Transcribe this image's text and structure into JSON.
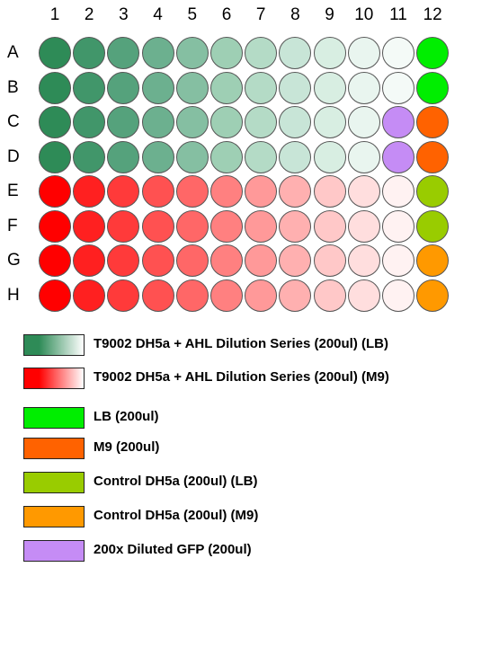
{
  "plate": {
    "columns": [
      "1",
      "2",
      "3",
      "4",
      "5",
      "6",
      "7",
      "8",
      "9",
      "10",
      "11",
      "12"
    ],
    "rows": [
      "A",
      "B",
      "C",
      "D",
      "E",
      "F",
      "G",
      "H"
    ],
    "colors": {
      "A": [
        "#2e8b57",
        "#41966a",
        "#55a27c",
        "#6cb08f",
        "#85bfa2",
        "#9ecfb4",
        "#b4dbc6",
        "#c8e5d7",
        "#d8eee2",
        "#e9f5ef",
        "#f4faf7",
        "#00ee00"
      ],
      "B": [
        "#2e8b57",
        "#41966a",
        "#55a27c",
        "#6cb08f",
        "#85bfa2",
        "#9ecfb4",
        "#b4dbc6",
        "#c8e5d7",
        "#d8eee2",
        "#e9f5ef",
        "#f4faf7",
        "#00ee00"
      ],
      "C": [
        "#2e8b57",
        "#41966a",
        "#55a27c",
        "#6cb08f",
        "#85bfa2",
        "#9ecfb4",
        "#b4dbc6",
        "#c8e5d7",
        "#d8eee2",
        "#e9f5ef",
        "#c58cf5",
        "#ff6200"
      ],
      "D": [
        "#2e8b57",
        "#41966a",
        "#55a27c",
        "#6cb08f",
        "#85bfa2",
        "#9ecfb4",
        "#b4dbc6",
        "#c8e5d7",
        "#d8eee2",
        "#e9f5ef",
        "#c58cf5",
        "#ff6200"
      ],
      "E": [
        "#ff0000",
        "#ff2020",
        "#ff3a3a",
        "#ff5151",
        "#ff6767",
        "#ff8080",
        "#ff9999",
        "#ffb0b0",
        "#ffc8c8",
        "#ffdede",
        "#fff2f2",
        "#99cc00"
      ],
      "F": [
        "#ff0000",
        "#ff2020",
        "#ff3a3a",
        "#ff5151",
        "#ff6767",
        "#ff8080",
        "#ff9999",
        "#ffb0b0",
        "#ffc8c8",
        "#ffdede",
        "#fff2f2",
        "#99cc00"
      ],
      "G": [
        "#ff0000",
        "#ff2020",
        "#ff3a3a",
        "#ff5151",
        "#ff6767",
        "#ff8080",
        "#ff9999",
        "#ffb0b0",
        "#ffc8c8",
        "#ffdede",
        "#fff2f2",
        "#ff9900"
      ],
      "H": [
        "#ff0000",
        "#ff2020",
        "#ff3a3a",
        "#ff5151",
        "#ff6767",
        "#ff8080",
        "#ff9999",
        "#ffb0b0",
        "#ffc8c8",
        "#ffdede",
        "#fff2f2",
        "#ff9900"
      ]
    }
  },
  "legend": [
    {
      "label": "T9002 DH5a + AHL Dilution Series (200ul) (LB)",
      "gradient_from": "#2e8b57",
      "gradient_to": "#ffffff"
    },
    {
      "label": "T9002 DH5a + AHL Dilution Series (200ul) (M9)",
      "gradient_from": "#ff0000",
      "gradient_to": "#ffffff"
    },
    {
      "label": "LB (200ul)",
      "color": "#00ee00"
    },
    {
      "label": "M9 (200ul)",
      "color": "#ff6200"
    },
    {
      "label": "Control DH5a (200ul) (LB)",
      "color": "#99cc00"
    },
    {
      "label": "Control DH5a (200ul) (M9)",
      "color": "#ff9900"
    },
    {
      "label": "200x Diluted GFP (200ul)",
      "color": "#c58cf5"
    }
  ]
}
